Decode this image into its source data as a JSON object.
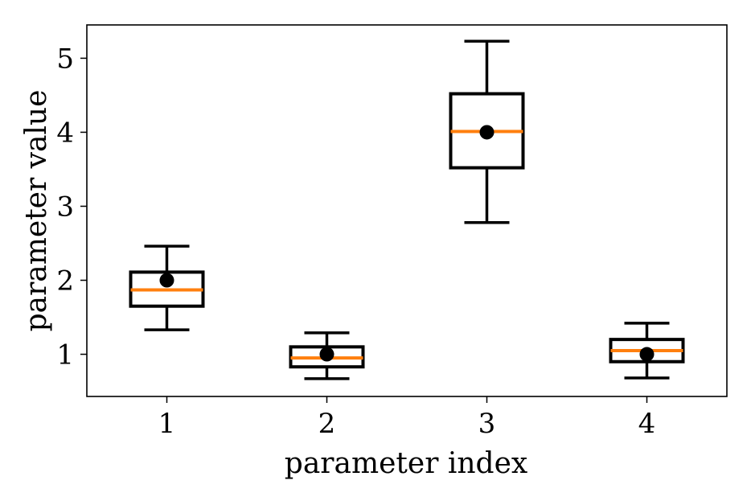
{
  "chart_data": {
    "type": "box",
    "xlabel": "parameter index",
    "ylabel": "parameter value",
    "ylim": [
      0.43,
      5.45
    ],
    "xlim": [
      0.5,
      4.5
    ],
    "grid": false,
    "colors": {
      "box": "#000000",
      "median": "#ff7f0e",
      "marker": "#000000"
    },
    "categories": [
      "1",
      "2",
      "3",
      "4"
    ],
    "y_ticks": [
      "1",
      "2",
      "3",
      "4",
      "5"
    ],
    "boxes": [
      {
        "label": "1",
        "whisker_low": 1.33,
        "q1": 1.65,
        "median": 1.87,
        "q3": 2.11,
        "whisker_high": 2.46,
        "marker": 2.0
      },
      {
        "label": "2",
        "whisker_low": 0.67,
        "q1": 0.83,
        "median": 0.95,
        "q3": 1.1,
        "whisker_high": 1.29,
        "marker": 1.0
      },
      {
        "label": "3",
        "whisker_low": 2.78,
        "q1": 3.52,
        "median": 4.01,
        "q3": 4.52,
        "whisker_high": 5.23,
        "marker": 4.0
      },
      {
        "label": "4",
        "whisker_low": 0.68,
        "q1": 0.9,
        "median": 1.05,
        "q3": 1.2,
        "whisker_high": 1.42,
        "marker": 1.0
      }
    ]
  }
}
